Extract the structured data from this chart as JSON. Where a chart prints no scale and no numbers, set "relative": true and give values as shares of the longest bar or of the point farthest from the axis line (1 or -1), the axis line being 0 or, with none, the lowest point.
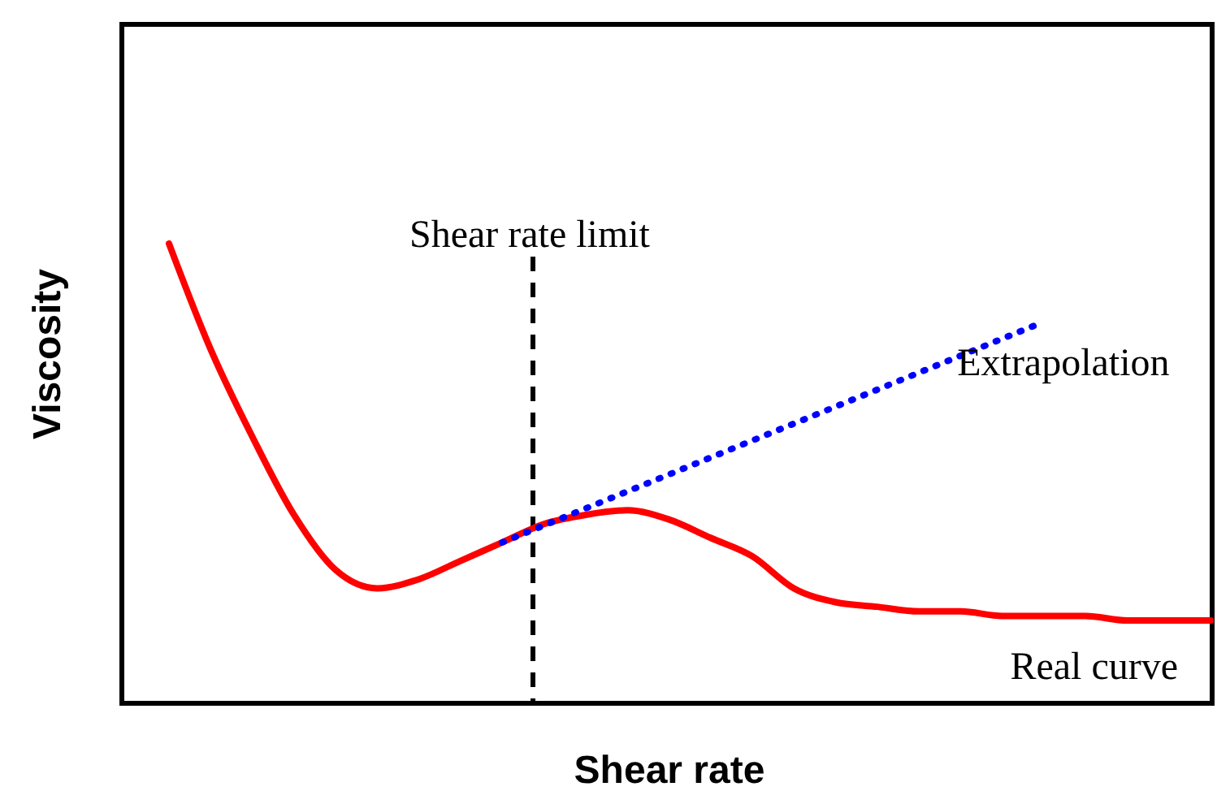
{
  "chart_data": {
    "type": "line",
    "relative": true,
    "xlabel": "Shear rate",
    "ylabel": "Viscosity",
    "categories": [
      null,
      null,
      null,
      null,
      null,
      null,
      null,
      null,
      null,
      null,
      null,
      null,
      null,
      null,
      null,
      null,
      null,
      null,
      null,
      null,
      null,
      null,
      null,
      null,
      null,
      null
    ],
    "series": [
      {
        "name": "Real curve",
        "color": "#ff0000",
        "line_style": "solid",
        "values": [
          1.0,
          0.77,
          0.58,
          0.41,
          0.29,
          0.25,
          0.27,
          0.31,
          0.35,
          0.39,
          0.41,
          0.42,
          0.4,
          0.36,
          0.32,
          0.25,
          0.22,
          0.21,
          0.2,
          0.2,
          0.19,
          0.19,
          0.19,
          0.18,
          0.18,
          0.18
        ]
      },
      {
        "name": "Extrapolation",
        "color": "#0000ff",
        "line_style": "dotted",
        "values": [
          null,
          null,
          null,
          null,
          null,
          null,
          null,
          null,
          0.35,
          null,
          null,
          null,
          null,
          null,
          null,
          null,
          null,
          null,
          null,
          null,
          null,
          0.83,
          null,
          null,
          null,
          null
        ]
      }
    ],
    "annotations": [
      "Shear rate limit"
    ]
  }
}
